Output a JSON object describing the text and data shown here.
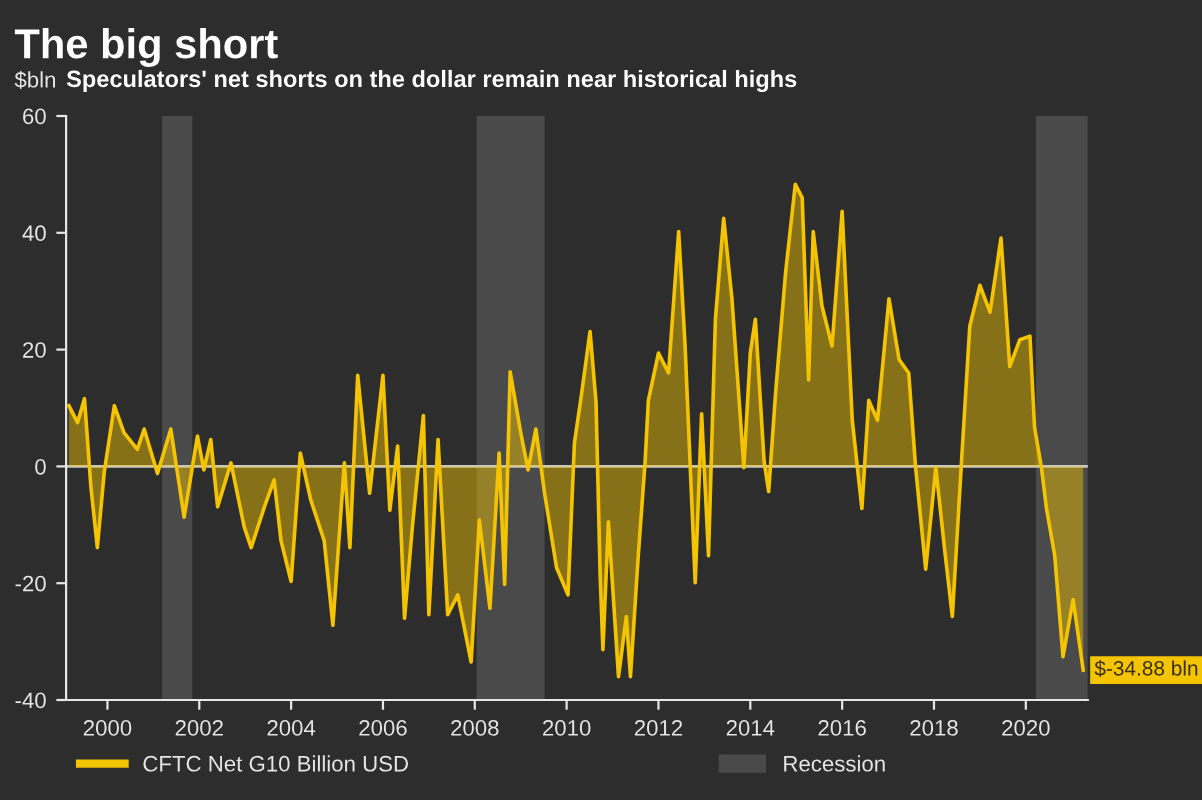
{
  "chart_data": {
    "type": "area",
    "title": "The big short",
    "subtitle": "Speculators' net shorts on the dollar remain near historical highs",
    "ylabel": "$bln",
    "x": [
      1999.16,
      1999.35,
      1999.5,
      1999.64,
      1999.78,
      1999.93,
      2000.15,
      2000.36,
      2000.65,
      2000.8,
      2001.09,
      2001.38,
      2001.67,
      2001.96,
      2002.1,
      2002.25,
      2002.4,
      2002.69,
      2002.98,
      2003.13,
      2003.42,
      2003.63,
      2003.78,
      2004.0,
      2004.2,
      2004.43,
      2004.72,
      2004.91,
      2005.16,
      2005.28,
      2005.45,
      2005.71,
      2006.0,
      2006.15,
      2006.32,
      2006.47,
      2006.64,
      2006.88,
      2007.0,
      2007.2,
      2007.41,
      2007.63,
      2007.92,
      2008.1,
      2008.33,
      2008.53,
      2008.65,
      2008.77,
      2009.0,
      2009.16,
      2009.33,
      2009.52,
      2009.78,
      2010.03,
      2010.17,
      2010.32,
      2010.51,
      2010.64,
      2010.73,
      2010.79,
      2010.91,
      2011.13,
      2011.3,
      2011.39,
      2011.56,
      2011.71,
      2011.78,
      2012.0,
      2012.22,
      2012.44,
      2012.58,
      2012.8,
      2012.94,
      2013.09,
      2013.24,
      2013.42,
      2013.6,
      2013.86,
      2014.0,
      2014.11,
      2014.3,
      2014.4,
      2014.55,
      2014.77,
      2014.98,
      2015.13,
      2015.27,
      2015.37,
      2015.56,
      2015.78,
      2016.0,
      2016.22,
      2016.43,
      2016.58,
      2016.77,
      2017.02,
      2017.24,
      2017.45,
      2017.6,
      2017.82,
      2018.04,
      2018.23,
      2018.4,
      2018.6,
      2018.78,
      2019.0,
      2019.22,
      2019.46,
      2019.65,
      2019.87,
      2020.09,
      2020.19,
      2020.34,
      2020.45,
      2020.63,
      2020.81,
      2021.03,
      2021.25
    ],
    "series": [
      {
        "name": "CFTC Net G10 Billion USD",
        "color": "#f5c400",
        "values": [
          10.4,
          7.5,
          11.6,
          -3.5,
          -13.9,
          -1,
          10.4,
          5.8,
          2.9,
          6.4,
          -1.2,
          6.4,
          -8.7,
          5.2,
          -0.6,
          4.6,
          -6.9,
          0.6,
          -10.4,
          -13.9,
          -6.9,
          -2.3,
          -12.7,
          -19.7,
          2.3,
          -5.8,
          -12.7,
          -27.2,
          0.6,
          -13.9,
          15.6,
          -4.6,
          15.6,
          -7.5,
          3.5,
          -26,
          -10.4,
          8.7,
          -25.4,
          4.6,
          -25.4,
          -22,
          -33.5,
          -9.2,
          -24.3,
          2.3,
          -20.2,
          16.2,
          5.8,
          -0.6,
          6.4,
          -4.6,
          -17.3,
          -22,
          4,
          12.1,
          23.1,
          11,
          -18.5,
          -31.4,
          -9.5,
          -36,
          -25.7,
          -36,
          -15.3,
          0.9,
          11.3,
          19.4,
          16,
          40.2,
          20.6,
          -19.9,
          9,
          -15.3,
          25.2,
          42.5,
          28.7,
          -0.2,
          19.4,
          25.2,
          0.9,
          -4.3,
          12.5,
          33.3,
          48.3,
          46,
          14.8,
          40.2,
          27.5,
          20.6,
          43.7,
          7.9,
          -7.2,
          11.3,
          7.9,
          28.7,
          18.3,
          16,
          -0.2,
          -17.6,
          -0.2,
          -14.1,
          -25.7,
          0.9,
          24,
          31,
          26.4,
          39.1,
          17.1,
          21.7,
          22.3,
          6.7,
          -0.2,
          -7.2,
          -15.3,
          -32.6,
          -22.8,
          -34.88
        ]
      }
    ],
    "xlim": [
      1999.1,
      2021.35
    ],
    "xticks": [
      2000,
      2002,
      2004,
      2006,
      2008,
      2010,
      2012,
      2014,
      2016,
      2018,
      2020
    ],
    "ylim": [
      -40,
      60
    ],
    "yticks": [
      -40,
      -20,
      0,
      20,
      40,
      60
    ],
    "bands": [
      {
        "axis": "x",
        "from": 2001.19,
        "to": 2001.85,
        "label": "Recession",
        "color": "#4a4a4a"
      },
      {
        "axis": "x",
        "from": 2008.04,
        "to": 2009.52,
        "color": "#4a4a4a"
      },
      {
        "axis": "x",
        "from": 2020.22,
        "to": 2021.35,
        "color": "#4a4a4a"
      }
    ],
    "ref_lines": [
      {
        "axis": "y",
        "value": 0,
        "color": "#c8c8c8"
      }
    ],
    "annotations": [
      {
        "text": "$-34.88 bln",
        "x": 2021.25,
        "y": -34.88
      }
    ],
    "legend": "bottom",
    "grid": false
  }
}
